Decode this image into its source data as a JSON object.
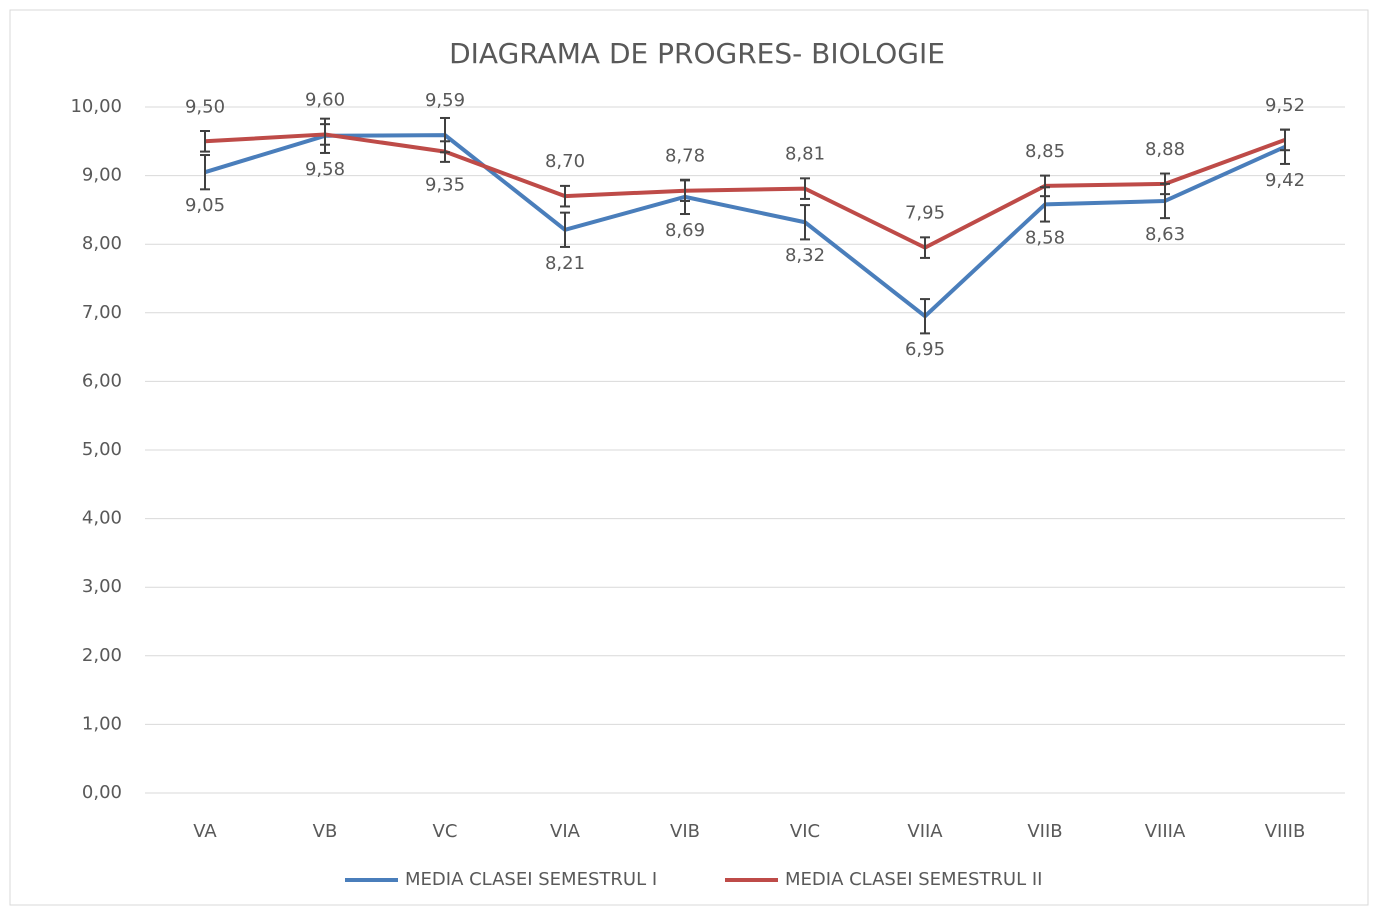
{
  "chart_data": {
    "type": "line",
    "title": "DIAGRAMA DE PROGRES- BIOLOGIE",
    "categories": [
      "VA",
      "VB",
      "VC",
      "VIA",
      "VIB",
      "VIC",
      "VIIA",
      "VIIB",
      "VIIIA",
      "VIIIB"
    ],
    "series": [
      {
        "name": "MEDIA CLASEI SEMESTRUL I",
        "color": "#4a7ebb",
        "values": [
          9.05,
          9.58,
          9.59,
          8.21,
          8.69,
          8.32,
          6.95,
          8.58,
          8.63,
          9.42
        ],
        "value_labels": [
          "9,05",
          "9,58",
          "9,59",
          "8,21",
          "8,69",
          "8,32",
          "6,95",
          "8,58",
          "8,63",
          "9,42"
        ],
        "error": 0.25
      },
      {
        "name": "MEDIA CLASEI SEMESTRUL II",
        "color": "#be4b48",
        "values": [
          9.5,
          9.6,
          9.35,
          8.7,
          8.78,
          8.81,
          7.95,
          8.85,
          8.88,
          9.52
        ],
        "value_labels": [
          "9,50",
          "9,60",
          "9,35",
          "8,70",
          "8,78",
          "8,81",
          "7,95",
          "8,85",
          "8,88",
          "9,52"
        ],
        "error": 0.15
      }
    ],
    "ylim": [
      0,
      10
    ],
    "yticks": [
      {
        "value": 0,
        "label": "0,00"
      },
      {
        "value": 1,
        "label": "1,00"
      },
      {
        "value": 2,
        "label": "2,00"
      },
      {
        "value": 3,
        "label": "3,00"
      },
      {
        "value": 4,
        "label": "4,00"
      },
      {
        "value": 5,
        "label": "5,00"
      },
      {
        "value": 6,
        "label": "6,00"
      },
      {
        "value": 7,
        "label": "7,00"
      },
      {
        "value": 8,
        "label": "8,00"
      },
      {
        "value": 9,
        "label": "9,00"
      },
      {
        "value": 10,
        "label": "10,00"
      }
    ],
    "grid": true,
    "legend": "bottom"
  }
}
